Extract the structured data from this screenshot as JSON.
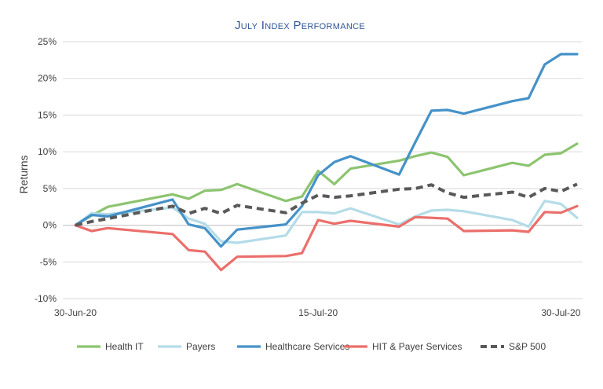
{
  "chart_data": {
    "type": "line",
    "title": "July Index Performance",
    "ylabel": "Returns",
    "xlabel": "",
    "ylim": [
      -10,
      25
    ],
    "yticks": [
      {
        "value": -10,
        "label": "-10%"
      },
      {
        "value": -5,
        "label": "-5%"
      },
      {
        "value": 0,
        "label": "0%"
      },
      {
        "value": 5,
        "label": "5%"
      },
      {
        "value": 10,
        "label": "10%"
      },
      {
        "value": 15,
        "label": "15%"
      },
      {
        "value": 20,
        "label": "20%"
      },
      {
        "value": 25,
        "label": "25%"
      }
    ],
    "xlim": [
      "2020-06-30",
      "2020-07-31"
    ],
    "xticks": [
      {
        "value": "2020-06-30",
        "label": "30-Jun-20"
      },
      {
        "value": "2020-07-15",
        "label": "15-Jul-20"
      },
      {
        "value": "2020-07-30",
        "label": "30-Jul-20"
      }
    ],
    "x": [
      "2020-06-30",
      "2020-07-01",
      "2020-07-02",
      "2020-07-06",
      "2020-07-07",
      "2020-07-08",
      "2020-07-09",
      "2020-07-10",
      "2020-07-13",
      "2020-07-14",
      "2020-07-15",
      "2020-07-16",
      "2020-07-17",
      "2020-07-20",
      "2020-07-21",
      "2020-07-22",
      "2020-07-23",
      "2020-07-24",
      "2020-07-27",
      "2020-07-28",
      "2020-07-29",
      "2020-07-30",
      "2020-07-31"
    ],
    "grid": true,
    "legend_position": "bottom",
    "series": [
      {
        "name": "Health IT",
        "color": "#8cc46f",
        "dash": "solid",
        "values": [
          0,
          1.3,
          2.5,
          4.2,
          3.6,
          4.7,
          4.8,
          5.6,
          3.3,
          3.9,
          7.4,
          5.6,
          7.7,
          8.8,
          9.4,
          9.9,
          9.3,
          6.8,
          8.5,
          8.1,
          9.6,
          9.8,
          11.1
        ]
      },
      {
        "name": "Payers",
        "color": "#b4dce8",
        "dash": "solid",
        "values": [
          0,
          1.6,
          1.5,
          2.4,
          0.9,
          0.2,
          -2.2,
          -2.4,
          -1.4,
          1.8,
          1.8,
          1.6,
          2.3,
          0.1,
          1.2,
          2.0,
          2.1,
          1.9,
          0.7,
          -0.2,
          3.3,
          2.9,
          1.0
        ]
      },
      {
        "name": "Healthcare Services",
        "color": "#4592c8",
        "dash": "solid",
        "values": [
          0,
          1.4,
          1.2,
          3.5,
          0.1,
          -0.4,
          -2.9,
          -0.6,
          0.1,
          2.6,
          6.8,
          8.6,
          9.4,
          6.9,
          11.3,
          15.6,
          15.7,
          15.2,
          16.9,
          17.3,
          21.9,
          23.3,
          23.3
        ]
      },
      {
        "name": "HIT & Payer Services",
        "color": "#eb6f6b",
        "dash": "solid",
        "values": [
          0,
          -0.8,
          -0.4,
          -1.2,
          -3.4,
          -3.6,
          -6.1,
          -4.3,
          -4.2,
          -3.8,
          0.7,
          0.2,
          0.6,
          -0.2,
          1.1,
          1.0,
          0.9,
          -0.8,
          -0.7,
          -0.9,
          1.8,
          1.7,
          2.6
        ]
      },
      {
        "name": "S&P 500",
        "color": "#595959",
        "dash": "dashed",
        "values": [
          0,
          0.5,
          0.9,
          2.6,
          1.6,
          2.3,
          1.6,
          2.7,
          1.7,
          3.0,
          4.1,
          3.8,
          4.0,
          4.9,
          5.0,
          5.5,
          4.4,
          3.8,
          4.5,
          3.8,
          5.0,
          4.6,
          5.6
        ]
      }
    ]
  }
}
